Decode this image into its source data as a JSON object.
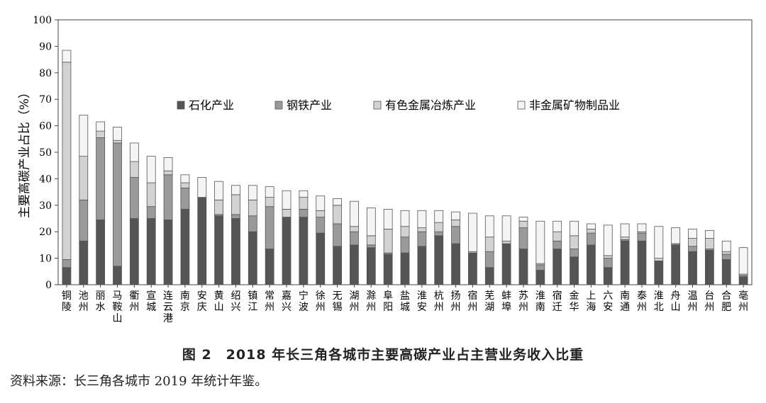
{
  "chart_data": {
    "type": "bar",
    "stacked": true,
    "ylabel": "主要高碳产业占比（%）",
    "ylim": [
      0,
      100
    ],
    "yticks": [
      0,
      10,
      20,
      30,
      40,
      50,
      60,
      70,
      80,
      90,
      100
    ],
    "grid": false,
    "legend_position": "top-center",
    "categories": [
      "铜陵",
      "池州",
      "丽水",
      "马鞍山",
      "衢州",
      "宣城",
      "连云港",
      "南京",
      "安庆",
      "黄山",
      "绍兴",
      "镇江",
      "常州",
      "嘉兴",
      "宁波",
      "徐州",
      "无锡",
      "湖州",
      "滁州",
      "阜阳",
      "盐城",
      "淮安",
      "杭州",
      "扬州",
      "宿州",
      "芜湖",
      "蚌埠",
      "苏州",
      "淮南",
      "宿迁",
      "金华",
      "上海",
      "六安",
      "南通",
      "泰州",
      "淮北",
      "舟山",
      "温州",
      "台州",
      "合肥",
      "亳州"
    ],
    "series": [
      {
        "name": "石化产业",
        "color": "#555555",
        "values": [
          6.5,
          16.5,
          24.5,
          7,
          25,
          25,
          24.5,
          28.5,
          33,
          26,
          25,
          20,
          13.5,
          25.5,
          25.5,
          19.5,
          14.5,
          15,
          14,
          11.5,
          12,
          14.5,
          18.5,
          15.5,
          12,
          6.5,
          15.5,
          13.5,
          5.5,
          13.5,
          10.5,
          15,
          6.5,
          16.5,
          16.5,
          9,
          15,
          12.5,
          13,
          9.5,
          3
        ]
      },
      {
        "name": "钢铁产业",
        "color": "#9a9a9a",
        "values": [
          3,
          15.5,
          31,
          46.5,
          15.5,
          4.5,
          17,
          8,
          0,
          0.5,
          1.5,
          6,
          16,
          0,
          3,
          6,
          8.5,
          5,
          1,
          0.5,
          6,
          5.5,
          1.5,
          6.5,
          0,
          6,
          0,
          8,
          2,
          3,
          3,
          4.5,
          3.5,
          0.5,
          3,
          0,
          0.5,
          2,
          0.5,
          2,
          0.5
        ]
      },
      {
        "name": "有色金属冶炼产业",
        "color": "#d2d2d2",
        "values": [
          74.5,
          16.5,
          2.5,
          1,
          6,
          9,
          1.5,
          2,
          0,
          5.5,
          7.5,
          6,
          3.5,
          3,
          4.5,
          2.5,
          7,
          2,
          3.5,
          9,
          4,
          1.5,
          3.5,
          2.5,
          0.5,
          5.5,
          1,
          2.5,
          0.5,
          3.5,
          5,
          1.5,
          1,
          1,
          0.5,
          1,
          0,
          3,
          4,
          1,
          0.5
        ]
      },
      {
        "name": "非金属矿物制品业",
        "color": "#f5f5f5",
        "values": [
          4.5,
          15.5,
          3.5,
          5,
          7,
          10,
          5,
          3,
          7.5,
          7,
          3.5,
          5.5,
          4,
          7,
          2.5,
          5.5,
          2.5,
          9.5,
          10.5,
          7.5,
          6,
          6.5,
          4.5,
          3,
          14.5,
          8,
          9.5,
          1.5,
          16,
          4,
          5.5,
          2,
          11.5,
          5,
          3,
          12,
          6,
          3.5,
          3,
          4,
          10
        ]
      }
    ]
  },
  "caption": "图 2　2018 年长三角各城市主要高碳产业占主营业务收入比重",
  "source": "资料来源：长三角各城市 2019 年统计年鉴。"
}
